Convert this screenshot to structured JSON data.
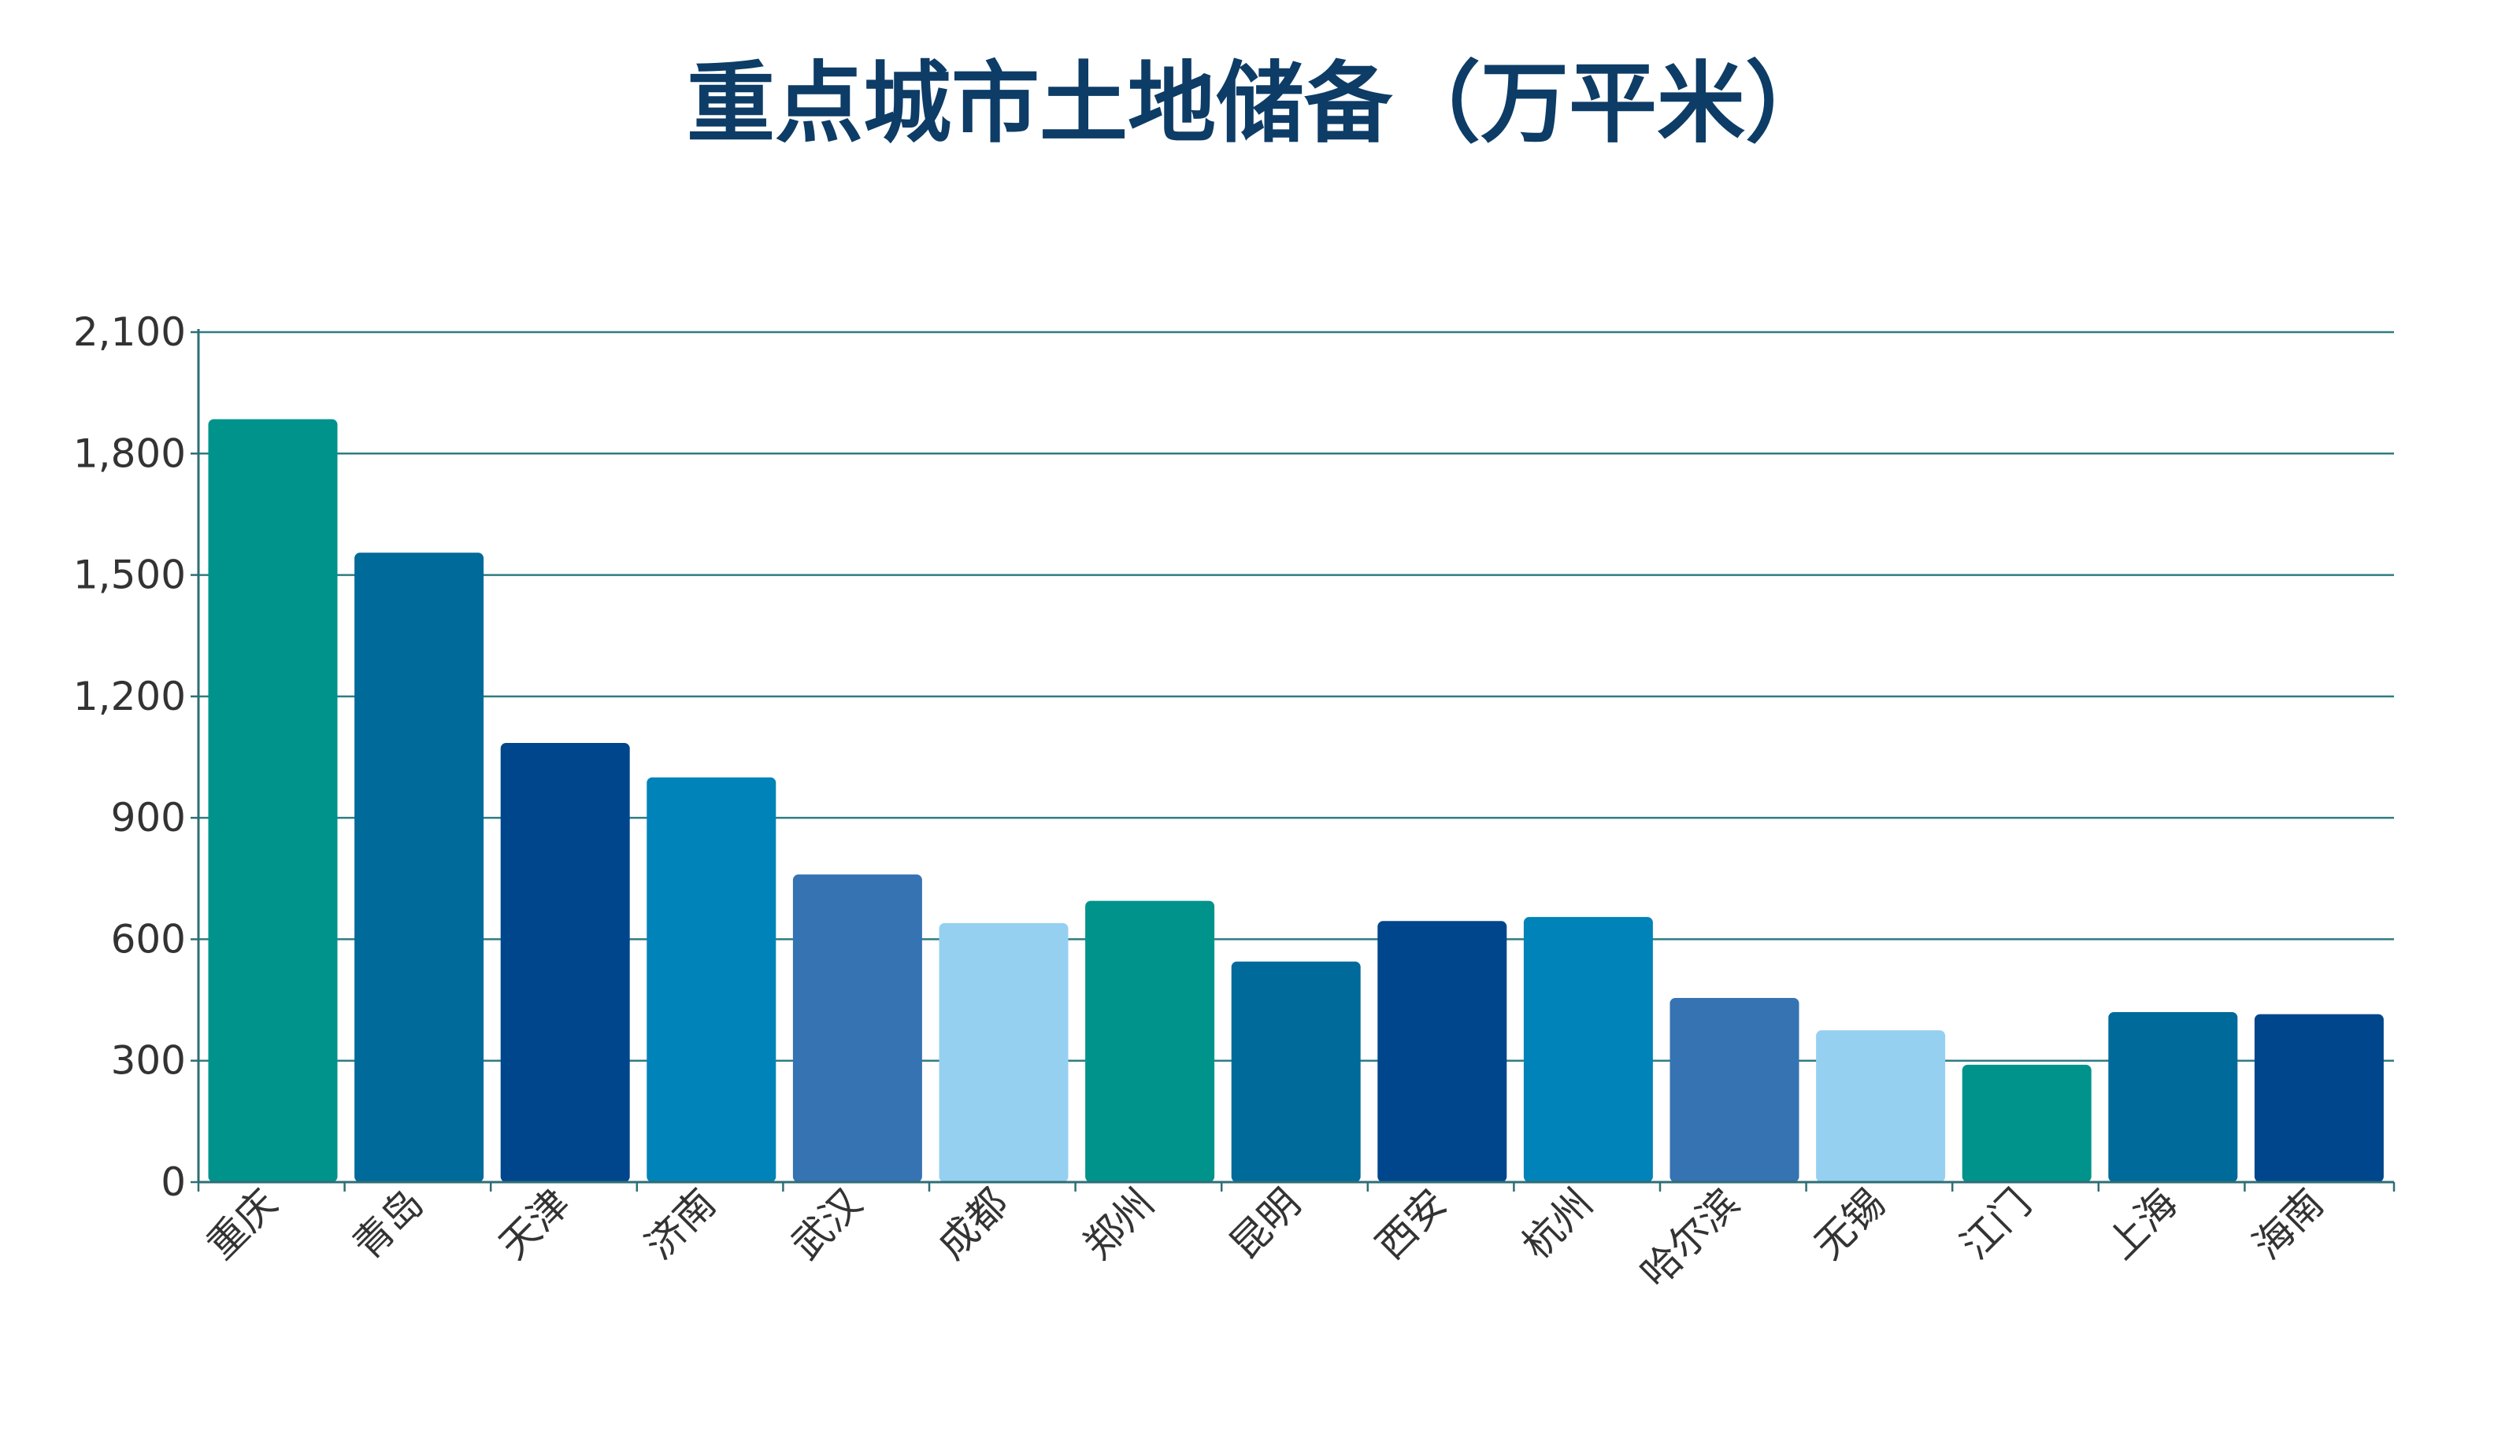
{
  "chart_data": {
    "type": "bar",
    "title": "重点城市土地储备（万平米）",
    "xlabel": "",
    "ylabel": "",
    "categories": [
      "重庆",
      "青岛",
      "天津",
      "济南",
      "武汉",
      "成都",
      "郑州",
      "昆明",
      "西安",
      "杭州",
      "哈尔滨",
      "无锡",
      "江门",
      "上海",
      "海南"
    ],
    "values": [
      1885,
      1555,
      1085,
      1000,
      760,
      640,
      695,
      545,
      645,
      655,
      455,
      375,
      290,
      420,
      415
    ],
    "ylim": [
      0,
      2100
    ],
    "yticks": [
      0,
      300,
      600,
      900,
      1200,
      1500,
      1800,
      2100
    ],
    "ytick_labels": [
      "0",
      "300",
      "600",
      "900",
      "1,200",
      "1,500",
      "1,800",
      "2,100"
    ],
    "colors": [
      "#00938b",
      "#006a9a",
      "#00468c",
      "#0083b8",
      "#3573b2",
      "#96d0f1",
      "#00938b",
      "#006a9a",
      "#00468c",
      "#0083b8",
      "#3573b2",
      "#96d0f1",
      "#00938b",
      "#006a9a",
      "#00468c"
    ],
    "grid": true,
    "legend": "none",
    "gridline_color": "#2f7c82",
    "axis_color": "#2f6d75",
    "title_color": "#0d3c66",
    "label_color": "#333333"
  }
}
